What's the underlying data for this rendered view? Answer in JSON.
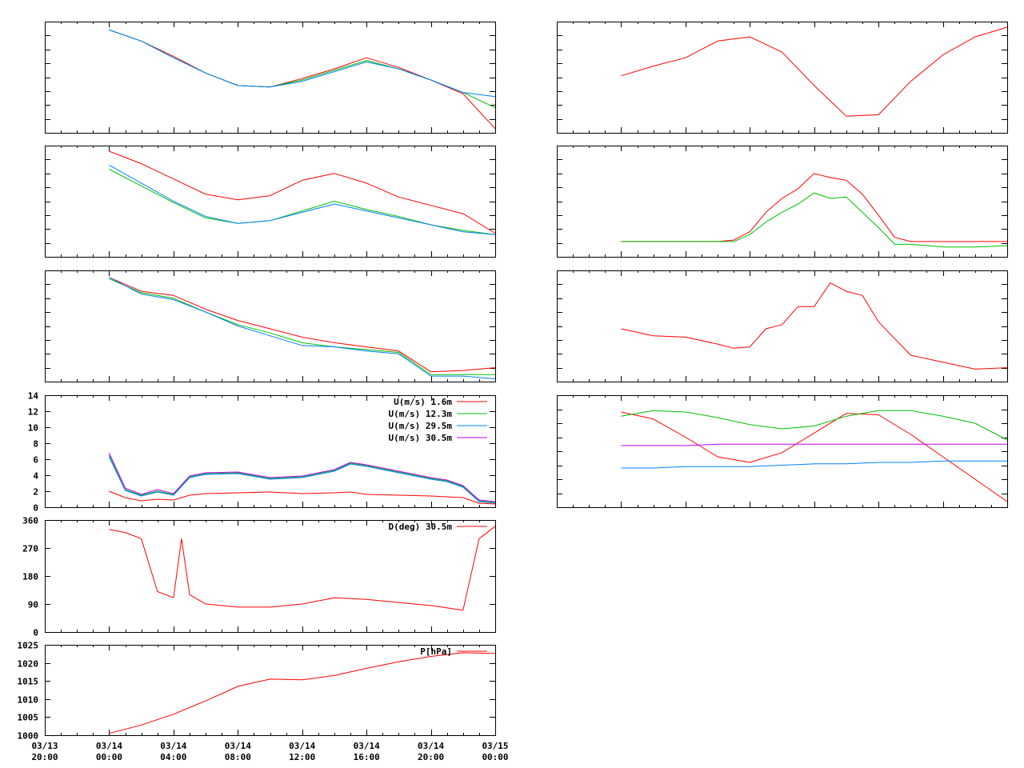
{
  "colors": {
    "red": "#ff0000",
    "green": "#00c000",
    "blue": "#0080ff",
    "purple": "#c000ff",
    "axis": "#000000"
  },
  "chart_data": [
    {
      "id": "left-1",
      "type": "line",
      "x": [
        -2,
        0,
        2,
        4,
        6,
        8,
        10,
        12,
        14,
        16,
        18,
        20,
        22,
        24
      ],
      "xlim": [
        -4,
        24
      ],
      "ylim": [
        0,
        8
      ],
      "yticks_count": 8,
      "tick_labels_shown": false,
      "series": [
        {
          "color": "red",
          "values": [
            null,
            7.4,
            6.6,
            5.5,
            4.3,
            3.4,
            3.3,
            3.9,
            4.6,
            5.4,
            4.7,
            3.8,
            2.8,
            0.3
          ]
        },
        {
          "color": "green",
          "values": [
            null,
            7.4,
            6.6,
            5.4,
            4.3,
            3.4,
            3.3,
            3.8,
            4.5,
            5.2,
            4.6,
            3.8,
            2.9,
            1.8
          ]
        },
        {
          "color": "blue",
          "values": [
            null,
            7.4,
            6.6,
            5.4,
            4.3,
            3.4,
            3.3,
            3.7,
            4.4,
            5.1,
            4.6,
            3.8,
            2.9,
            2.6
          ]
        }
      ]
    },
    {
      "id": "left-2",
      "type": "line",
      "x": [
        -2,
        0,
        2,
        4,
        6,
        8,
        10,
        12,
        14,
        16,
        18,
        20,
        22,
        24
      ],
      "xlim": [
        -4,
        24
      ],
      "ylim": [
        0,
        8
      ],
      "yticks_count": 8,
      "tick_labels_shown": false,
      "series": [
        {
          "color": "red",
          "values": [
            null,
            7.6,
            6.7,
            5.6,
            4.5,
            4.1,
            4.4,
            5.5,
            6.0,
            5.3,
            4.3,
            3.7,
            3.1,
            1.7
          ]
        },
        {
          "color": "green",
          "values": [
            null,
            6.3,
            5.1,
            3.9,
            2.8,
            2.4,
            2.6,
            3.3,
            4.0,
            3.4,
            2.9,
            2.3,
            1.9,
            1.6
          ]
        },
        {
          "color": "blue",
          "values": [
            null,
            6.6,
            5.3,
            4.0,
            2.9,
            2.4,
            2.6,
            3.2,
            3.8,
            3.3,
            2.8,
            2.3,
            1.8,
            1.6
          ]
        }
      ]
    },
    {
      "id": "left-3",
      "type": "line",
      "x": [
        -2,
        0,
        2,
        4,
        6,
        8,
        10,
        12,
        14,
        16,
        18,
        20,
        22,
        24
      ],
      "xlim": [
        -4,
        24
      ],
      "ylim": [
        0,
        8
      ],
      "yticks_count": 8,
      "tick_labels_shown": false,
      "series": [
        {
          "color": "red",
          "values": [
            null,
            7.5,
            6.5,
            6.2,
            5.2,
            4.4,
            3.8,
            3.2,
            2.8,
            2.5,
            2.2,
            0.7,
            0.8,
            1.0
          ]
        },
        {
          "color": "green",
          "values": [
            null,
            7.4,
            6.4,
            6.0,
            5.0,
            4.1,
            3.5,
            2.8,
            2.5,
            2.3,
            2.1,
            0.5,
            0.5,
            0.5
          ]
        },
        {
          "color": "blue",
          "values": [
            null,
            7.5,
            6.3,
            5.9,
            5.0,
            4.0,
            3.3,
            2.6,
            2.5,
            2.2,
            2.0,
            0.4,
            0.4,
            0.2
          ]
        }
      ]
    },
    {
      "id": "wind-speed",
      "type": "line",
      "x": [
        -2,
        0,
        1,
        2,
        3,
        4,
        5,
        6,
        8,
        10,
        12,
        14,
        15,
        16,
        18,
        20,
        21,
        22,
        23,
        24
      ],
      "xlim": [
        -4,
        24
      ],
      "ylim": [
        0,
        14
      ],
      "yticks": [
        0,
        2,
        4,
        6,
        8,
        10,
        12,
        14
      ],
      "tick_labels_shown": true,
      "series": [
        {
          "name": "U(m/s)  1.6m",
          "color": "red",
          "values": [
            null,
            2.0,
            1.2,
            0.8,
            1.0,
            0.9,
            1.5,
            1.7,
            1.8,
            1.9,
            1.7,
            1.8,
            1.9,
            1.6,
            1.5,
            1.4,
            1.3,
            1.2,
            0.5,
            0.4
          ]
        },
        {
          "name": "U(m/s) 12.3m",
          "color": "green",
          "values": [
            null,
            6.5,
            2.2,
            1.5,
            2.0,
            1.6,
            3.8,
            4.2,
            4.3,
            3.6,
            3.8,
            4.6,
            5.5,
            5.2,
            4.4,
            3.6,
            3.3,
            2.6,
            0.8,
            0.6
          ]
        },
        {
          "name": "U(m/s) 29.5m",
          "color": "blue",
          "values": [
            null,
            6.3,
            2.1,
            1.4,
            1.9,
            1.5,
            3.7,
            4.1,
            4.2,
            3.5,
            3.7,
            4.5,
            5.4,
            5.1,
            4.3,
            3.5,
            3.2,
            2.5,
            0.7,
            0.5
          ]
        },
        {
          "name": "U(m/s) 30.5m",
          "color": "purple",
          "values": [
            null,
            6.8,
            2.4,
            1.6,
            2.2,
            1.7,
            3.9,
            4.3,
            4.4,
            3.7,
            3.9,
            4.7,
            5.6,
            5.3,
            4.5,
            3.7,
            3.4,
            2.7,
            0.9,
            0.7
          ]
        }
      ]
    },
    {
      "id": "wind-direction",
      "type": "line",
      "x": [
        -2,
        0,
        1,
        2,
        3,
        4,
        4.5,
        5,
        6,
        8,
        10,
        12,
        14,
        16,
        18,
        20,
        22,
        23,
        24
      ],
      "xlim": [
        -4,
        24
      ],
      "ylim": [
        0,
        360
      ],
      "yticks": [
        0,
        90,
        180,
        270,
        360
      ],
      "tick_labels_shown": true,
      "series": [
        {
          "name": "D(deg)  30.5m",
          "color": "red",
          "values": [
            null,
            330,
            320,
            300,
            130,
            110,
            300,
            120,
            90,
            80,
            80,
            90,
            110,
            105,
            95,
            85,
            70,
            300,
            340
          ]
        }
      ]
    },
    {
      "id": "pressure",
      "type": "line",
      "x": [
        -2,
        0,
        2,
        4,
        6,
        8,
        10,
        12,
        14,
        16,
        18,
        20,
        22,
        24
      ],
      "xlim": [
        -4,
        24
      ],
      "ylim": [
        1000,
        1025
      ],
      "yticks": [
        1000,
        1005,
        1010,
        1015,
        1020,
        1025
      ],
      "tick_labels_shown": true,
      "xticks": [
        -4,
        0,
        4,
        8,
        12,
        16,
        20,
        24
      ],
      "xtick_labels": [
        [
          "03/13",
          "20:00"
        ],
        [
          "03/14",
          "00:00"
        ],
        [
          "03/14",
          "04:00"
        ],
        [
          "03/14",
          "08:00"
        ],
        [
          "03/14",
          "12:00"
        ],
        [
          "03/14",
          "16:00"
        ],
        [
          "03/14",
          "20:00"
        ],
        [
          "03/15",
          "00:00"
        ]
      ],
      "series": [
        {
          "name": "P[hPa]",
          "color": "red",
          "values": [
            null,
            1000.5,
            1002.8,
            1005.8,
            1009.5,
            1013.5,
            1015.5,
            1015.3,
            1016.5,
            1018.5,
            1020.3,
            1021.8,
            1022.8,
            1022.6
          ]
        }
      ]
    },
    {
      "id": "right-1",
      "type": "line",
      "x": [
        -2,
        0,
        2,
        4,
        6,
        8,
        10,
        12,
        14,
        16,
        18,
        20,
        22,
        24
      ],
      "xlim": [
        -4,
        24
      ],
      "ylim": [
        0,
        8
      ],
      "yticks_count": 8,
      "tick_labels_shown": false,
      "series": [
        {
          "color": "red",
          "values": [
            null,
            4.1,
            4.8,
            5.4,
            6.6,
            6.9,
            5.8,
            3.4,
            1.2,
            1.3,
            3.7,
            5.6,
            6.9,
            7.6
          ]
        }
      ]
    },
    {
      "id": "right-2",
      "type": "line",
      "x": [
        -2,
        0,
        2,
        4,
        6,
        7,
        8,
        9,
        10,
        11,
        12,
        13,
        14,
        15,
        16,
        17,
        18,
        20,
        22,
        24
      ],
      "xlim": [
        -4,
        24
      ],
      "ylim": [
        0,
        8
      ],
      "yticks_count": 8,
      "tick_labels_shown": false,
      "series": [
        {
          "color": "red",
          "values": [
            null,
            1.1,
            1.1,
            1.1,
            1.1,
            1.2,
            1.8,
            3.2,
            4.2,
            4.9,
            6.0,
            5.7,
            5.5,
            4.5,
            3.0,
            1.4,
            1.1,
            1.1,
            1.1,
            1.1
          ]
        },
        {
          "color": "green",
          "values": [
            null,
            1.1,
            1.1,
            1.1,
            1.1,
            1.1,
            1.6,
            2.5,
            3.2,
            3.8,
            4.6,
            4.2,
            4.3,
            3.2,
            2.1,
            0.9,
            0.9,
            0.7,
            0.7,
            0.8
          ]
        }
      ]
    },
    {
      "id": "right-3",
      "type": "line",
      "x": [
        -2,
        0,
        2,
        4,
        6,
        7,
        8,
        9,
        10,
        11,
        12,
        13,
        14,
        15,
        16,
        18,
        20,
        22,
        24
      ],
      "xlim": [
        -4,
        24
      ],
      "ylim": [
        0,
        8
      ],
      "yticks_count": 8,
      "tick_labels_shown": false,
      "series": [
        {
          "color": "red",
          "values": [
            null,
            3.8,
            3.3,
            3.2,
            2.7,
            2.4,
            2.5,
            3.8,
            4.1,
            5.4,
            5.4,
            7.1,
            6.5,
            6.2,
            4.3,
            1.9,
            1.4,
            0.9,
            1.0
          ]
        }
      ]
    },
    {
      "id": "right-4",
      "type": "line",
      "x": [
        -2,
        0,
        2,
        4,
        6,
        8,
        10,
        12,
        14,
        16,
        18,
        20,
        22,
        24
      ],
      "xlim": [
        -4,
        24
      ],
      "ylim": [
        0,
        8
      ],
      "yticks_count": 8,
      "tick_labels_shown": false,
      "series": [
        {
          "color": "red",
          "values": [
            null,
            6.8,
            6.3,
            5.0,
            3.6,
            3.2,
            3.9,
            5.3,
            6.7,
            6.6,
            5.2,
            3.6,
            2.0,
            0.4
          ]
        },
        {
          "color": "green",
          "values": [
            null,
            6.5,
            6.9,
            6.8,
            6.4,
            5.9,
            5.6,
            5.8,
            6.5,
            6.9,
            6.9,
            6.5,
            6.0,
            4.8
          ]
        },
        {
          "color": "purple",
          "values": [
            null,
            4.4,
            4.4,
            4.4,
            4.5,
            4.5,
            4.5,
            4.5,
            4.5,
            4.5,
            4.5,
            4.5,
            4.5,
            4.5
          ]
        },
        {
          "color": "blue",
          "values": [
            null,
            2.8,
            2.8,
            2.9,
            2.9,
            2.9,
            3.0,
            3.1,
            3.1,
            3.2,
            3.2,
            3.3,
            3.3,
            3.3
          ]
        }
      ]
    }
  ]
}
